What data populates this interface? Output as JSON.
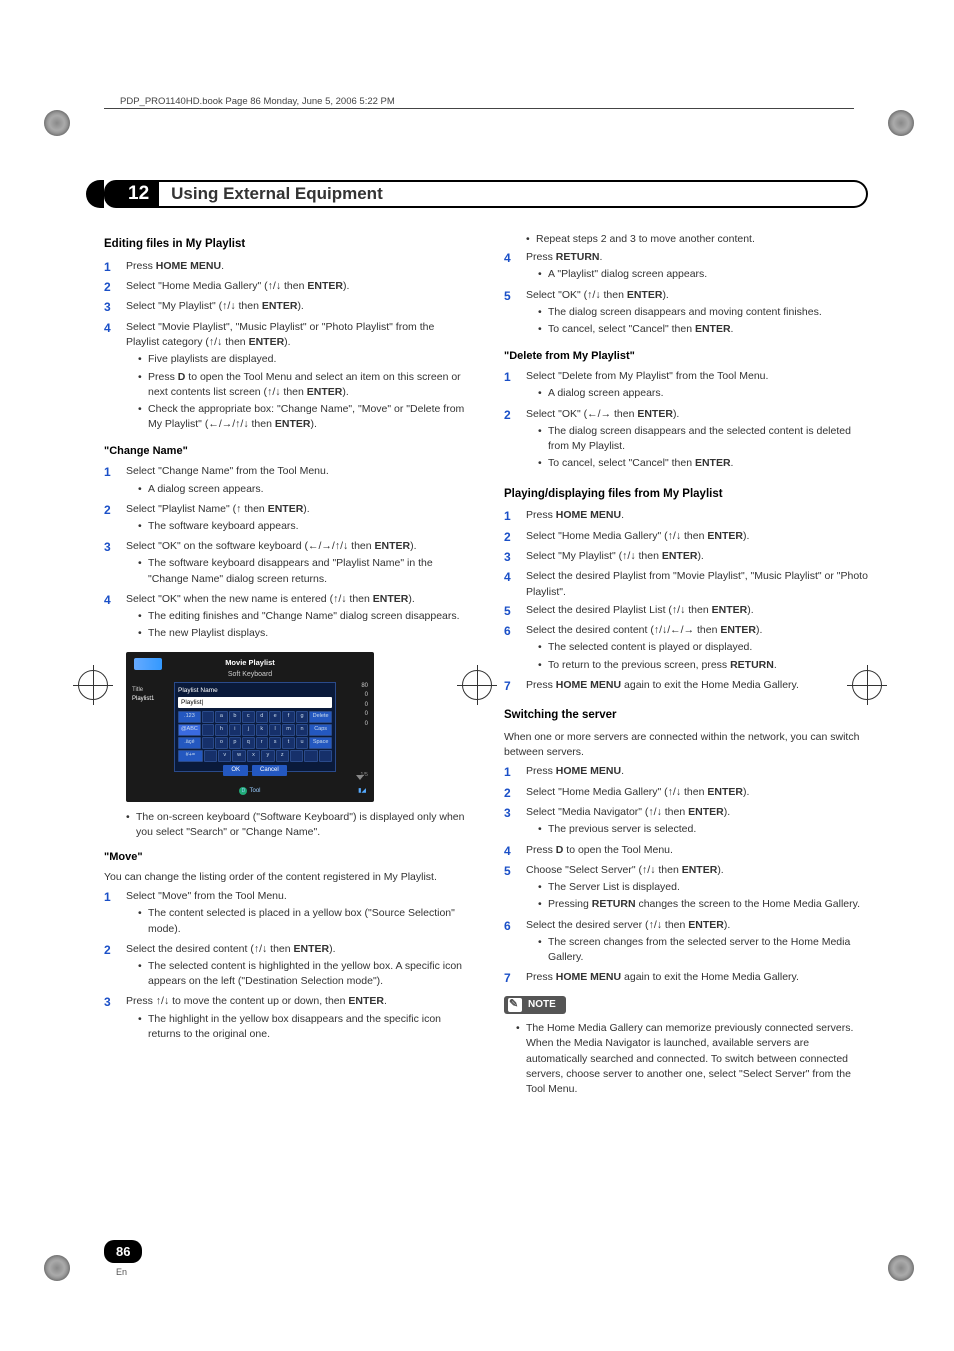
{
  "meta": {
    "header_text": "PDP_PRO1140HD.book  Page 86  Monday, June 5, 2006  5:22 PM"
  },
  "chapter": {
    "number": "12",
    "title": "Using External Equipment"
  },
  "left": {
    "h_editing": "Editing files in My Playlist",
    "steps_editing": {
      "s1": "Press <b class='k'>HOME MENU</b>.",
      "s2": "Select \"Home Media Gallery\" (<span class='arrow'>↑</span>/<span class='arrow'>↓</span> then <b class='k'>ENTER</b>).",
      "s3": "Select \"My Playlist\" (<span class='arrow'>↑</span>/<span class='arrow'>↓</span> then <b class='k'>ENTER</b>).",
      "s4": "Select \"Movie Playlist\", \"Music Playlist\" or \"Photo Playlist\" from the Playlist category (<span class='arrow'>↑</span>/<span class='arrow'>↓</span> then <b class='k'>ENTER</b>).",
      "s4_b1": "Five playlists are displayed.",
      "s4_b2": "Press <b class='k'>D</b> to open the Tool Menu and select an item on this screen or next contents list screen (<span class='arrow'>↑</span>/<span class='arrow'>↓</span> then <b class='k'>ENTER</b>).",
      "s4_b3": "Check the appropriate box: \"Change Name\", \"Move\" or \"Delete from My Playlist\" (<span class='arrow'>←</span>/<span class='arrow'>→</span>/<span class='arrow'>↑</span>/<span class='arrow'>↓</span> then <b class='k'>ENTER</b>)."
    },
    "h_change": "\"Change Name\"",
    "steps_change": {
      "s1": "Select \"Change Name\" from the Tool Menu.",
      "s1_b1": "A dialog screen appears.",
      "s2": "Select \"Playlist Name\" (<span class='arrow'>↑</span> then <b class='k'>ENTER</b>).",
      "s2_b1": "The software keyboard appears.",
      "s3": "Select \"OK\" on the software keyboard (<span class='arrow'>←</span>/<span class='arrow'>→</span>/<span class='arrow'>↑</span>/<span class='arrow'>↓</span> then <b class='k'>ENTER</b>).",
      "s3_b1": "The software keyboard disappears and \"Playlist Name\" in the \"Change Name\" dialog screen returns.",
      "s4": "Select \"OK\" when the new name is entered (<span class='arrow'>↑</span>/<span class='arrow'>↓</span> then <b class='k'>ENTER</b>).",
      "s4_b1": "The editing finishes and \"Change Name\" dialog screen disappears.",
      "s4_b2": "The new Playlist displays."
    },
    "shot": {
      "title": "Movie Playlist",
      "sub": "Soft Keyboard",
      "side_title": "Title",
      "side_pl": "Playlist1",
      "lbl": "Playlist Name",
      "field": "Playlist|",
      "rows": [
        [
          ".123",
          "",
          "a",
          "b",
          "c",
          "d",
          "e",
          "f",
          "g",
          "Delete"
        ],
        [
          "@ABC",
          "",
          "h",
          "i",
          "j",
          "k",
          "l",
          "m",
          "n",
          "Caps"
        ],
        [
          ".äçé",
          "",
          "o",
          "p",
          "q",
          "r",
          "s",
          "t",
          "u",
          "Space"
        ],
        [
          "#+=",
          "",
          "v",
          "w",
          "x",
          "y",
          "z",
          "",
          "",
          ""
        ]
      ],
      "ok": "OK",
      "cancel": "Cancel",
      "tool": "Tool",
      "d": "D",
      "right_vals": [
        "80",
        "0",
        "0",
        "0",
        "0"
      ],
      "pg": "1/5"
    },
    "after_shot_b1": "The on-screen keyboard (\"Software Keyboard\") is displayed only when you select \"Search\" or \"Change Name\".",
    "h_move": "\"Move\"",
    "move_intro": "You can change the listing order of the content registered in My Playlist.",
    "steps_move": {
      "s1": "Select \"Move\" from the Tool Menu.",
      "s1_b1": "The content selected is placed in a yellow box (\"Source Selection\" mode).",
      "s2": "Select the desired content (<span class='arrow'>↑</span>/<span class='arrow'>↓</span> then <b class='k'>ENTER</b>).",
      "s2_b1": "The selected content is highlighted in the yellow box. A specific icon appears on the left (\"Destination Selection mode\").",
      "s3": "Press <span class='arrow'>↑</span>/<span class='arrow'>↓</span> to move the content up or down, then <b class='k'>ENTER</b>.",
      "s3_b1": "The highlight in the yellow box disappears and the specific icon returns to the original one."
    }
  },
  "right": {
    "top_b1": "Repeat steps 2 and 3 to move another content.",
    "s4": "Press <b class='k'>RETURN</b>.",
    "s4_b1": "A \"Playlist\" dialog screen appears.",
    "s5": "Select \"OK\" (<span class='arrow'>↑</span>/<span class='arrow'>↓</span> then <b class='k'>ENTER</b>).",
    "s5_b1": "The dialog screen disappears and moving content finishes.",
    "s5_b2": "To cancel, select \"Cancel\" then <b class='k'>ENTER</b>.",
    "h_delete": "\"Delete from My Playlist\"",
    "steps_delete": {
      "s1": "Select \"Delete from My Playlist\" from the Tool Menu.",
      "s1_b1": "A dialog screen appears.",
      "s2": "Select \"OK\" (<span class='arrow'>←</span>/<span class='arrow'>→</span> then <b class='k'>ENTER</b>).",
      "s2_b1": "The dialog screen disappears and the selected content is deleted from My Playlist.",
      "s2_b2": "To cancel, select \"Cancel\" then <b class='k'>ENTER</b>."
    },
    "h_play": "Playing/displaying files from My Playlist",
    "steps_play": {
      "s1": "Press <b class='k'>HOME MENU</b>.",
      "s2": "Select \"Home Media Gallery\" (<span class='arrow'>↑</span>/<span class='arrow'>↓</span> then <b class='k'>ENTER</b>).",
      "s3": "Select \"My Playlist\" (<span class='arrow'>↑</span>/<span class='arrow'>↓</span> then <b class='k'>ENTER</b>).",
      "s4": "Select the desired Playlist from \"Movie Playlist\", \"Music Playlist\" or \"Photo Playlist\".",
      "s5": "Select the desired Playlist List (<span class='arrow'>↑</span>/<span class='arrow'>↓</span> then <b class='k'>ENTER</b>).",
      "s6": "Select the desired content (<span class='arrow'>↑</span>/<span class='arrow'>↓</span>/<span class='arrow'>←</span>/<span class='arrow'>→</span> then <b class='k'>ENTER</b>).",
      "s6_b1": "The selected content is played or displayed.",
      "s6_b2": "To return to the previous screen, press <b class='k'>RETURN</b>.",
      "s7": "Press <b class='k'>HOME MENU</b> again to exit the Home Media Gallery."
    },
    "h_switch": "Switching the server",
    "switch_intro": "When one or more servers are connected within the network, you can switch between servers.",
    "steps_switch": {
      "s1": "Press <b class='k'>HOME MENU</b>.",
      "s2": "Select \"Home Media Gallery\" (<span class='arrow'>↑</span>/<span class='arrow'>↓</span> then <b class='k'>ENTER</b>).",
      "s3": "Select \"Media Navigator\" (<span class='arrow'>↑</span>/<span class='arrow'>↓</span> then <b class='k'>ENTER</b>).",
      "s3_b1": "The previous server is selected.",
      "s4": "Press <b class='k'>D</b> to open the Tool Menu.",
      "s5": "Choose \"Select Server\" (<span class='arrow'>↑</span>/<span class='arrow'>↓</span> then <b class='k'>ENTER</b>).",
      "s5_b1": "The Server List is displayed.",
      "s5_b2": "Pressing <b class='k'>RETURN</b> changes the screen to the Home Media Gallery.",
      "s6": "Select the desired server (<span class='arrow'>↑</span>/<span class='arrow'>↓</span> then <b class='k'>ENTER</b>).",
      "s6_b1": "The screen changes from the selected server to the Home Media Gallery.",
      "s7": "Press <b class='k'>HOME MENU</b> again to exit the Home Media Gallery."
    },
    "note_label": "NOTE",
    "note_b1": "The Home Media Gallery can memorize previously connected servers. When the Media Navigator is launched, available servers are automatically searched and connected. To switch between connected servers, choose server to another one, select \"Select Server\" from the Tool Menu."
  },
  "page_number": "86",
  "page_lang": "En"
}
